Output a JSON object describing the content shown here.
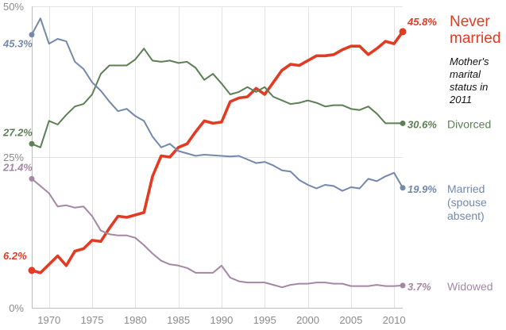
{
  "chart_data": {
    "type": "line",
    "title": "",
    "annotation": [
      "Mother's",
      "marital",
      "status in",
      "2011"
    ],
    "xlabel": "",
    "ylabel": "",
    "xlim": [
      1968,
      2011
    ],
    "ylim": [
      0,
      50
    ],
    "grid": true,
    "x_ticks": [
      1970,
      1975,
      1980,
      1985,
      1990,
      1995,
      2000,
      2005,
      2010
    ],
    "x_tick_labels": [
      "1970",
      "1975",
      "1980",
      "1985",
      "1990",
      "1995",
      "2000",
      "2005",
      "2010"
    ],
    "y_ticks": [
      0,
      25,
      50
    ],
    "y_tick_labels": [
      "0%",
      "25%",
      "50%"
    ],
    "colors": {
      "never_married": "#e23b24",
      "divorced": "#5c7f54",
      "married": "#7388ab",
      "widowed": "#a487a4",
      "grid": "#e3e3e3"
    },
    "x": [
      1968,
      1969,
      1970,
      1971,
      1972,
      1973,
      1974,
      1975,
      1976,
      1977,
      1978,
      1979,
      1980,
      1981,
      1982,
      1983,
      1984,
      1985,
      1986,
      1987,
      1988,
      1989,
      1990,
      1991,
      1992,
      1993,
      1994,
      1995,
      1996,
      1997,
      1998,
      1999,
      2000,
      2001,
      2002,
      2003,
      2004,
      2005,
      2006,
      2007,
      2008,
      2009,
      2010,
      2011
    ],
    "series": [
      {
        "name": "Never married",
        "name_lines": [
          "Never",
          "married"
        ],
        "first_label": "6.2%",
        "last_label": "45.8%",
        "color_key": "never_married",
        "values": [
          6.2,
          5.8,
          7.2,
          8.6,
          7.0,
          9.4,
          9.8,
          11.2,
          11.0,
          13.2,
          15.2,
          15.0,
          15.4,
          15.8,
          21.8,
          25.2,
          25.0,
          26.6,
          27.2,
          29.2,
          31.0,
          30.6,
          30.8,
          34.2,
          34.8,
          35.0,
          36.4,
          35.4,
          37.4,
          39.4,
          40.4,
          40.2,
          41.0,
          41.8,
          41.8,
          42.0,
          42.8,
          43.4,
          43.4,
          42.0,
          43.0,
          44.2,
          43.8,
          45.8
        ]
      },
      {
        "name": "Divorced",
        "name_lines": [
          "Divorced"
        ],
        "first_label": "27.2%",
        "last_label": "30.6%",
        "color_key": "divorced",
        "values": [
          27.2,
          26.6,
          31.0,
          30.4,
          32.0,
          33.4,
          33.8,
          35.4,
          38.8,
          40.2,
          40.2,
          40.2,
          41.2,
          43.0,
          41.0,
          40.8,
          41.0,
          40.6,
          40.8,
          39.8,
          37.8,
          38.8,
          37.2,
          35.4,
          35.8,
          36.6,
          35.8,
          36.6,
          35.0,
          34.4,
          33.8,
          34.0,
          34.4,
          34.0,
          33.4,
          33.6,
          33.6,
          33.0,
          32.8,
          33.4,
          32.2,
          30.6,
          30.6,
          30.6
        ]
      },
      {
        "name": "Married (spouse absent)",
        "name_lines": [
          "Married",
          "(spouse",
          "absent)"
        ],
        "first_label": "45.3%",
        "last_label": "19.9%",
        "color_key": "married",
        "values": [
          45.3,
          48.0,
          43.8,
          44.6,
          44.2,
          40.8,
          39.6,
          37.4,
          36.0,
          34.2,
          32.6,
          33.0,
          31.8,
          31.0,
          28.4,
          26.6,
          27.2,
          26.0,
          25.6,
          25.2,
          25.4,
          25.3,
          25.2,
          25.1,
          25.2,
          24.6,
          24.0,
          24.2,
          23.6,
          22.8,
          22.6,
          21.2,
          20.4,
          19.8,
          20.4,
          20.2,
          19.4,
          20.0,
          19.8,
          21.4,
          21.0,
          21.8,
          22.4,
          19.9
        ]
      },
      {
        "name": "Widowed",
        "name_lines": [
          "Widowed"
        ],
        "first_label": "21.4%",
        "last_label": "3.7%",
        "color_key": "widowed",
        "values": [
          21.4,
          20.2,
          19.0,
          16.8,
          17.0,
          16.6,
          16.8,
          15.2,
          12.8,
          12.2,
          12.0,
          12.0,
          11.6,
          10.4,
          9.0,
          7.8,
          7.2,
          7.0,
          6.6,
          5.8,
          5.8,
          5.8,
          7.0,
          5.0,
          4.4,
          4.2,
          4.2,
          4.2,
          3.8,
          3.4,
          3.8,
          4.0,
          4.0,
          4.2,
          4.2,
          4.0,
          4.0,
          3.6,
          3.6,
          3.6,
          3.8,
          3.6,
          3.6,
          3.7
        ]
      }
    ]
  }
}
